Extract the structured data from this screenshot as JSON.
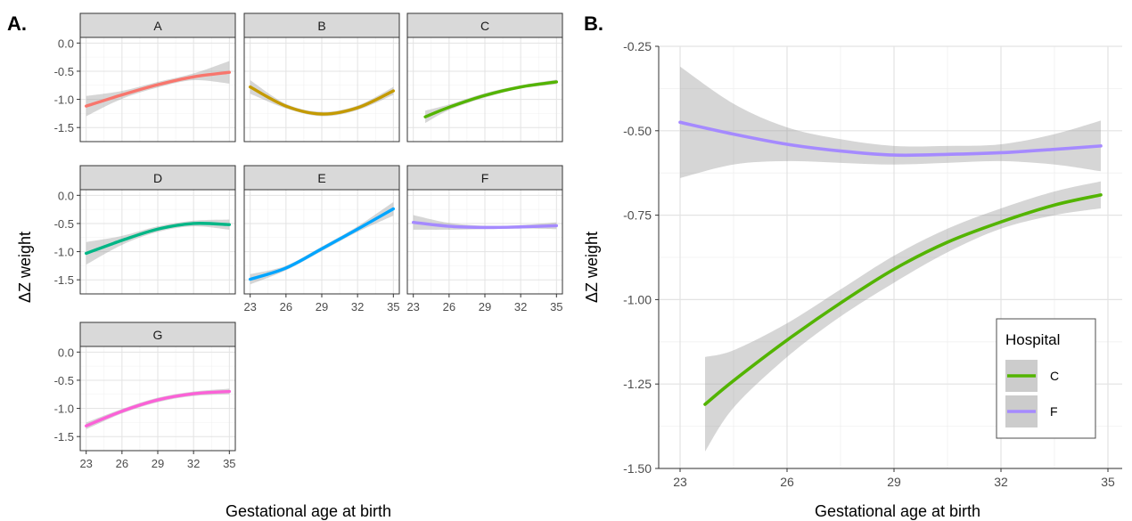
{
  "chart_data": [
    {
      "type": "line",
      "panel_label": "A.",
      "facets": [
        "A",
        "B",
        "C",
        "D",
        "E",
        "F",
        "G"
      ],
      "xlabel": "Gestational age at birth",
      "ylabel": "ΔZ weight",
      "xlim": [
        22.5,
        35.5
      ],
      "ylim": [
        -1.75,
        0.1
      ],
      "xticks": [
        23,
        26,
        29,
        32,
        35
      ],
      "yticks": [
        0.0,
        -0.5,
        -1.0,
        -1.5
      ],
      "ytick_labels": [
        "0.0",
        "-0.5",
        "-1.0",
        "-1.5"
      ],
      "grid": true,
      "series": [
        {
          "facet": "A",
          "color": "#f8766d",
          "x": [
            23,
            26,
            29,
            32,
            35
          ],
          "y": [
            -1.12,
            -0.92,
            -0.74,
            -0.6,
            -0.52
          ],
          "ci_halfwidth": [
            0.18,
            0.07,
            0.05,
            0.06,
            0.2
          ]
        },
        {
          "facet": "B",
          "color": "#c49a00",
          "x": [
            23,
            26,
            29,
            32,
            35
          ],
          "y": [
            -0.78,
            -1.12,
            -1.26,
            -1.15,
            -0.85
          ],
          "ci_halfwidth": [
            0.12,
            0.04,
            0.04,
            0.04,
            0.07
          ]
        },
        {
          "facet": "C",
          "color": "#53b400",
          "x": [
            24,
            26,
            29,
            32,
            35
          ],
          "y": [
            -1.31,
            -1.14,
            -0.93,
            -0.78,
            -0.69
          ],
          "ci_halfwidth": [
            0.11,
            0.05,
            0.04,
            0.03,
            0.04
          ]
        },
        {
          "facet": "D",
          "color": "#00b686",
          "x": [
            23,
            26,
            29,
            32,
            35
          ],
          "y": [
            -1.03,
            -0.8,
            -0.6,
            -0.5,
            -0.52
          ],
          "ci_halfwidth": [
            0.2,
            0.08,
            0.05,
            0.05,
            0.09
          ]
        },
        {
          "facet": "E",
          "color": "#00a5ff",
          "x": [
            23,
            26,
            29,
            32,
            35
          ],
          "y": [
            -1.49,
            -1.29,
            -0.95,
            -0.6,
            -0.24
          ],
          "ci_halfwidth": [
            0.09,
            0.04,
            0.04,
            0.05,
            0.12
          ]
        },
        {
          "facet": "F",
          "color": "#a58aff",
          "x": [
            23,
            26,
            29,
            32,
            35
          ],
          "y": [
            -0.48,
            -0.55,
            -0.57,
            -0.56,
            -0.54
          ],
          "ci_halfwidth": [
            0.13,
            0.06,
            0.03,
            0.03,
            0.06
          ]
        },
        {
          "facet": "G",
          "color": "#fb61d7",
          "x": [
            23,
            26,
            29,
            32,
            35
          ],
          "y": [
            -1.31,
            -1.05,
            -0.85,
            -0.74,
            -0.7
          ],
          "ci_halfwidth": [
            0.06,
            0.04,
            0.04,
            0.04,
            0.05
          ]
        }
      ]
    },
    {
      "type": "line",
      "panel_label": "B.",
      "xlabel": "Gestational age at birth",
      "ylabel": "ΔZ weight",
      "xlim": [
        22.4,
        35.4
      ],
      "ylim": [
        -1.5,
        -0.25
      ],
      "xticks": [
        23,
        26,
        29,
        32,
        35
      ],
      "yticks": [
        -0.25,
        -0.5,
        -0.75,
        -1.0,
        -1.25,
        -1.5
      ],
      "ytick_labels": [
        "-0.25",
        "-0.50",
        "-0.75",
        "-1.00",
        "-1.25",
        "-1.50"
      ],
      "grid": true,
      "legend": {
        "title": "Hospital",
        "position": "bottom-right"
      },
      "series": [
        {
          "name": "C",
          "color": "#53b400",
          "x": [
            23.7,
            24.5,
            26,
            27.5,
            29,
            30.5,
            32,
            33.5,
            34.8
          ],
          "y": [
            -1.31,
            -1.24,
            -1.12,
            -1.01,
            -0.91,
            -0.83,
            -0.77,
            -0.72,
            -0.69
          ],
          "lower": [
            -1.45,
            -1.32,
            -1.17,
            -1.05,
            -0.95,
            -0.86,
            -0.79,
            -0.75,
            -0.73
          ],
          "upper": [
            -1.17,
            -1.15,
            -1.07,
            -0.97,
            -0.87,
            -0.79,
            -0.73,
            -0.68,
            -0.65
          ]
        },
        {
          "name": "F",
          "color": "#a58aff",
          "x": [
            23,
            24.5,
            26,
            27.5,
            29,
            30.5,
            32,
            33.5,
            34.8
          ],
          "y": [
            -0.475,
            -0.51,
            -0.54,
            -0.56,
            -0.572,
            -0.57,
            -0.565,
            -0.555,
            -0.545
          ],
          "lower": [
            -0.64,
            -0.6,
            -0.59,
            -0.595,
            -0.6,
            -0.595,
            -0.59,
            -0.6,
            -0.62
          ],
          "upper": [
            -0.31,
            -0.42,
            -0.49,
            -0.525,
            -0.545,
            -0.545,
            -0.54,
            -0.51,
            -0.47
          ]
        }
      ]
    }
  ]
}
